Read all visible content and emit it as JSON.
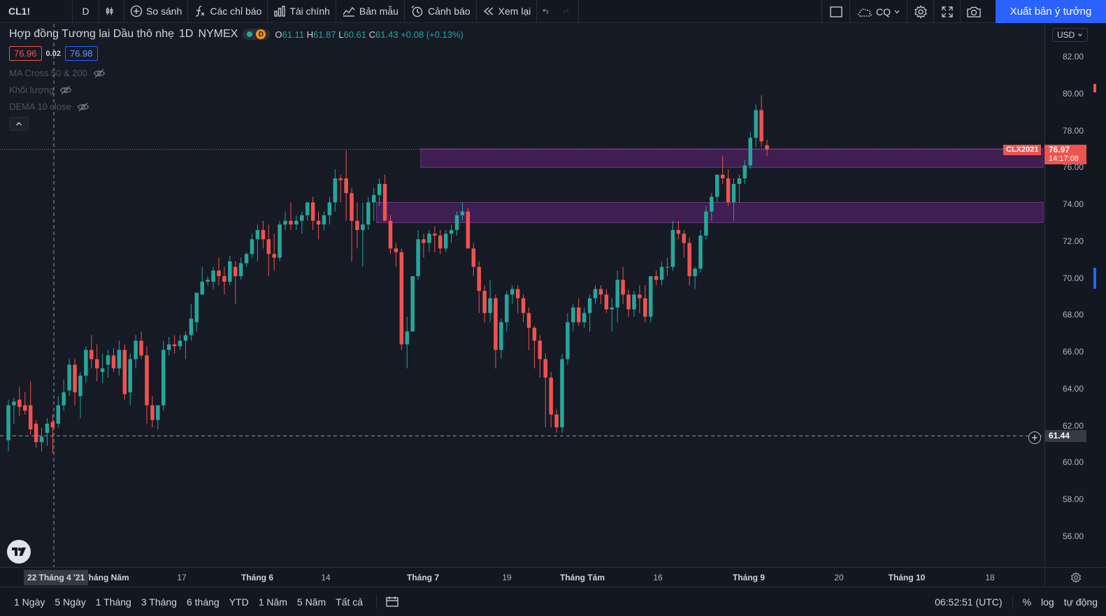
{
  "toolbar": {
    "symbol": "CL1!",
    "interval": "D",
    "compare": "So sánh",
    "indicators": "Các chỉ báo",
    "financials": "Tài chính",
    "templates": "Bản mẫu",
    "alert": "Cảnh báo",
    "replay": "Xem lại",
    "cloud_label": "CQ",
    "publish": "Xuất bản ý tưởng"
  },
  "legend": {
    "title": "Hợp đồng Tương lai Dầu thô nhẹ",
    "interval": "1D",
    "exchange": "NYMEX",
    "status_letter": "D",
    "o_label": "O",
    "o": "61.11",
    "h_label": "H",
    "h": "61.87",
    "l_label": "L",
    "l": "60.61",
    "c_label": "C",
    "c": "61.43",
    "change": "+0.08 (+0.13%)"
  },
  "spread": {
    "bid": "76.96",
    "spread": "0.02",
    "ask": "76.98"
  },
  "indicators": [
    {
      "label": "MA Cross 50 & 200"
    },
    {
      "label": "Khối lượng"
    },
    {
      "label": "DEMA 10 close"
    }
  ],
  "currency": "USD",
  "price_axis": {
    "labels": [
      "82.00",
      "80.00",
      "78.00",
      "76.00",
      "74.00",
      "72.00",
      "70.00",
      "68.00",
      "66.00",
      "64.00",
      "62.00",
      "60.00",
      "58.00",
      "56.00"
    ],
    "last_symbol": "CLX2021",
    "last_price": "76.97",
    "countdown": "14:17:08",
    "crosshair_price": "61.44"
  },
  "time_axis": {
    "labels": [
      "Tháng Năm",
      "17",
      "Tháng 6",
      "14",
      "Tháng 7",
      "19",
      "Tháng Tám",
      "16",
      "Tháng 9",
      "20",
      "Tháng 10",
      "18"
    ],
    "bold": [
      true,
      false,
      true,
      false,
      true,
      false,
      true,
      false,
      true,
      false,
      true,
      false
    ],
    "crosshair_time": "22 Tháng 4 '21"
  },
  "bottom": {
    "ranges": [
      "1 Ngày",
      "5 Ngày",
      "1 Tháng",
      "3 Tháng",
      "6 tháng",
      "YTD",
      "1 Năm",
      "5 Năm",
      "Tất cả"
    ],
    "clock": "06:52:51 (UTC)",
    "percent": "%",
    "log": "log",
    "auto": "tự động"
  },
  "colors": {
    "up": "#26a69a",
    "down": "#ef5350",
    "zone": "#4a1f5e",
    "accent": "#2962ff"
  },
  "chart_data": {
    "type": "candlestick",
    "ylim": [
      55,
      83
    ],
    "zones": [
      {
        "from_bar": 75,
        "y_low": 76.0,
        "y_high": 77.0
      },
      {
        "from_bar": 67,
        "y_low": 73.0,
        "y_high": 74.1
      }
    ],
    "candles": [
      [
        61.2,
        63.4,
        60.6,
        63.1
      ],
      [
        63.1,
        63.5,
        62.1,
        63.3
      ],
      [
        63.4,
        64.1,
        62.5,
        63.0
      ],
      [
        63.1,
        63.8,
        62.6,
        62.8
      ],
      [
        63.1,
        64.4,
        61.5,
        61.8
      ],
      [
        62.1,
        62.3,
        60.8,
        61.1
      ],
      [
        61.1,
        61.9,
        60.6,
        61.4
      ],
      [
        61.6,
        62.4,
        60.9,
        62.1
      ],
      [
        62.2,
        62.6,
        60.5,
        61.9
      ],
      [
        62.1,
        63.6,
        61.9,
        63.1
      ],
      [
        63.1,
        64.5,
        62.8,
        63.8
      ],
      [
        63.9,
        65.6,
        63.6,
        65.3
      ],
      [
        65.3,
        65.6,
        63.1,
        63.8
      ],
      [
        63.6,
        64.9,
        62.4,
        64.7
      ],
      [
        64.7,
        66.3,
        64.3,
        66.1
      ],
      [
        66.1,
        66.9,
        65.1,
        65.6
      ],
      [
        65.6,
        66.4,
        64.4,
        65.1
      ],
      [
        64.9,
        65.9,
        64.3,
        65.1
      ],
      [
        65.3,
        66.1,
        64.6,
        65.8
      ],
      [
        65.8,
        66.2,
        64.9,
        65.1
      ],
      [
        65.1,
        66.6,
        64.7,
        66.1
      ],
      [
        66.1,
        66.4,
        63.4,
        63.7
      ],
      [
        63.8,
        65.9,
        63.1,
        65.6
      ],
      [
        65.6,
        66.9,
        65.1,
        66.6
      ],
      [
        66.6,
        67.1,
        65.6,
        65.8
      ],
      [
        65.8,
        66.3,
        62.1,
        63.1
      ],
      [
        63.1,
        63.6,
        61.9,
        62.3
      ],
      [
        62.3,
        63.1,
        61.8,
        63.1
      ],
      [
        63.1,
        66.6,
        62.8,
        66.1
      ],
      [
        66.1,
        66.8,
        65.8,
        66.4
      ],
      [
        66.4,
        66.9,
        65.9,
        66.3
      ],
      [
        66.3,
        66.9,
        66.1,
        66.6
      ],
      [
        66.6,
        67.1,
        65.6,
        66.9
      ],
      [
        66.9,
        68.6,
        66.6,
        67.8
      ],
      [
        67.6,
        69.1,
        67.1,
        69.2
      ],
      [
        69.1,
        70.6,
        69.1,
        69.8
      ],
      [
        69.8,
        70.1,
        69.6,
        69.9
      ],
      [
        69.8,
        70.6,
        69.4,
        70.4
      ],
      [
        70.4,
        71.1,
        69.6,
        70.1
      ],
      [
        70.1,
        70.6,
        69.1,
        69.8
      ],
      [
        69.8,
        71.2,
        69.6,
        70.9
      ],
      [
        70.6,
        70.9,
        68.6,
        70.1
      ],
      [
        70.1,
        71.1,
        69.9,
        70.8
      ],
      [
        70.8,
        71.4,
        70.6,
        71.3
      ],
      [
        71.3,
        72.4,
        71.1,
        72.1
      ],
      [
        72.1,
        72.9,
        70.9,
        72.6
      ],
      [
        72.6,
        73.1,
        71.6,
        72.1
      ],
      [
        72.1,
        72.9,
        70.1,
        71.3
      ],
      [
        71.3,
        72.4,
        70.4,
        71.1
      ],
      [
        71.1,
        73.1,
        70.9,
        72.9
      ],
      [
        72.9,
        73.6,
        72.6,
        73.1
      ],
      [
        73.1,
        74.1,
        72.6,
        72.9
      ],
      [
        72.9,
        73.4,
        72.6,
        73.1
      ],
      [
        73.1,
        73.6,
        72.4,
        73.4
      ],
      [
        73.4,
        74.1,
        73.1,
        74.1
      ],
      [
        74.1,
        74.4,
        72.6,
        73.1
      ],
      [
        73.1,
        73.6,
        72.1,
        72.9
      ],
      [
        72.9,
        73.6,
        72.6,
        73.4
      ],
      [
        73.4,
        74.4,
        72.9,
        74.1
      ],
      [
        74.1,
        75.9,
        73.6,
        75.4
      ],
      [
        75.4,
        75.6,
        74.1,
        75.3
      ],
      [
        75.4,
        76.9,
        73.1,
        74.6
      ],
      [
        74.6,
        74.9,
        70.9,
        73.1
      ],
      [
        73.1,
        74.1,
        71.6,
        72.6
      ],
      [
        72.6,
        74.1,
        70.6,
        72.9
      ],
      [
        72.9,
        74.4,
        72.6,
        74.1
      ],
      [
        74.1,
        74.9,
        73.1,
        74.5
      ],
      [
        74.5,
        75.4,
        73.9,
        75.1
      ],
      [
        75.1,
        75.6,
        73.1,
        73.1
      ],
      [
        73.1,
        73.4,
        71.3,
        71.6
      ],
      [
        71.6,
        71.9,
        70.6,
        71.4
      ],
      [
        71.4,
        71.6,
        66.1,
        66.4
      ],
      [
        66.4,
        67.9,
        65.1,
        67.1
      ],
      [
        67.1,
        70.1,
        67.1,
        70.1
      ],
      [
        70.1,
        72.6,
        69.9,
        72.1
      ],
      [
        72.1,
        72.4,
        71.1,
        71.9
      ],
      [
        71.9,
        72.6,
        71.4,
        72.4
      ],
      [
        72.4,
        72.8,
        71.4,
        72.3
      ],
      [
        72.3,
        72.6,
        71.3,
        71.6
      ],
      [
        71.6,
        72.6,
        71.4,
        72.4
      ],
      [
        72.4,
        72.9,
        71.9,
        72.6
      ],
      [
        72.6,
        73.6,
        72.3,
        73.4
      ],
      [
        73.4,
        74.1,
        73.1,
        73.6
      ],
      [
        73.6,
        73.8,
        71.6,
        71.6
      ],
      [
        71.6,
        71.9,
        70.1,
        70.6
      ],
      [
        70.6,
        70.9,
        68.1,
        69.3
      ],
      [
        69.3,
        69.6,
        67.6,
        68.1
      ],
      [
        68.1,
        69.9,
        67.6,
        68.9
      ],
      [
        68.9,
        69.1,
        65.1,
        66.1
      ],
      [
        66.1,
        67.8,
        65.6,
        67.6
      ],
      [
        67.6,
        69.3,
        67.1,
        69.1
      ],
      [
        69.1,
        69.6,
        68.6,
        69.4
      ],
      [
        69.4,
        69.6,
        68.1,
        68.9
      ],
      [
        68.9,
        69.1,
        67.6,
        68.1
      ],
      [
        68.1,
        68.4,
        66.1,
        67.3
      ],
      [
        67.3,
        67.4,
        65.1,
        66.6
      ],
      [
        66.6,
        66.9,
        64.6,
        65.6
      ],
      [
        65.6,
        65.9,
        61.9,
        64.6
      ],
      [
        64.6,
        64.9,
        61.9,
        62.6
      ],
      [
        62.6,
        62.9,
        61.6,
        61.9
      ],
      [
        61.9,
        65.9,
        61.6,
        65.6
      ],
      [
        65.6,
        68.1,
        65.3,
        67.6
      ],
      [
        67.6,
        68.6,
        67.1,
        68.4
      ],
      [
        68.4,
        68.9,
        67.4,
        67.6
      ],
      [
        67.6,
        68.4,
        67.3,
        68.1
      ],
      [
        68.1,
        69.1,
        67.1,
        68.9
      ],
      [
        68.9,
        69.6,
        68.6,
        69.4
      ],
      [
        69.4,
        69.6,
        68.6,
        69.1
      ],
      [
        69.1,
        69.4,
        68.1,
        68.3
      ],
      [
        68.3,
        68.9,
        67.1,
        68.4
      ],
      [
        68.4,
        70.4,
        67.6,
        69.9
      ],
      [
        69.9,
        70.6,
        68.6,
        69.1
      ],
      [
        69.1,
        69.4,
        67.9,
        68.3
      ],
      [
        68.3,
        69.3,
        67.9,
        69.1
      ],
      [
        69.1,
        69.6,
        68.1,
        68.9
      ],
      [
        68.9,
        69.6,
        67.6,
        67.9
      ],
      [
        67.9,
        70.1,
        67.6,
        70.1
      ],
      [
        70.1,
        70.4,
        69.6,
        69.9
      ],
      [
        69.9,
        70.9,
        69.6,
        70.6
      ],
      [
        70.6,
        71.1,
        70.1,
        70.6
      ],
      [
        70.6,
        73.1,
        70.4,
        72.6
      ],
      [
        72.6,
        73.1,
        72.1,
        72.4
      ],
      [
        72.4,
        72.6,
        71.1,
        71.9
      ],
      [
        71.9,
        72.2,
        69.6,
        70.1
      ],
      [
        70.1,
        70.6,
        69.4,
        70.5
      ],
      [
        70.5,
        72.6,
        70.3,
        72.3
      ],
      [
        72.3,
        73.9,
        72.1,
        73.6
      ],
      [
        73.6,
        74.6,
        73.1,
        74.4
      ],
      [
        74.4,
        75.6,
        74.1,
        75.6
      ],
      [
        75.6,
        76.6,
        75.1,
        75.4
      ],
      [
        75.4,
        75.9,
        73.9,
        74.1
      ],
      [
        74.1,
        75.4,
        73.1,
        75.1
      ],
      [
        75.1,
        75.6,
        74.1,
        75.4
      ],
      [
        75.4,
        76.4,
        75.1,
        76.1
      ],
      [
        76.1,
        77.9,
        75.9,
        77.6
      ],
      [
        77.6,
        79.4,
        77.1,
        79.1
      ],
      [
        79.1,
        79.9,
        77.1,
        77.4
      ],
      [
        77.2,
        77.5,
        76.6,
        76.97
      ]
    ]
  }
}
